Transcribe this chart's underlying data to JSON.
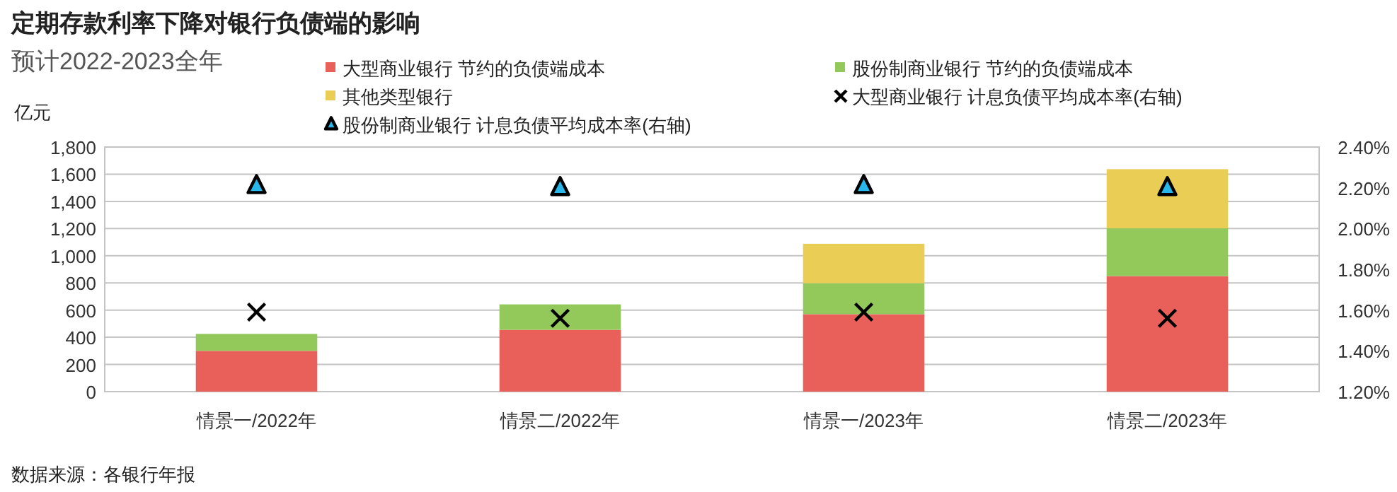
{
  "chart_data": {
    "type": "bar",
    "title": "定期存款利率下降对银行负债端的影响",
    "subtitle": "预计2022-2023全年",
    "ylabel": "亿元",
    "categories": [
      "情景一/2022年",
      "情景二/2022年",
      "情景一/2023年",
      "情景二/2023年"
    ],
    "stacked": true,
    "grid": "y",
    "legend": "top",
    "ylim": [
      0,
      1800
    ],
    "yticks": [
      0,
      {
        "value": 200,
        "label": "200"
      },
      {
        "value": 400,
        "label": "400"
      },
      {
        "value": 600,
        "label": "600"
      },
      {
        "value": 800,
        "label": "800"
      },
      {
        "value": 1000,
        "label": "1,000"
      },
      {
        "value": 1200,
        "label": "1,200"
      },
      {
        "value": 1400,
        "label": "1,400"
      },
      {
        "value": 1600,
        "label": "1,600"
      },
      {
        "value": 1800,
        "label": "1,800"
      }
    ],
    "y2lim": [
      1.2,
      2.4
    ],
    "y2ticks": [
      {
        "value": 1.2,
        "label": "1.20%"
      },
      {
        "value": 1.4,
        "label": "1.40%"
      },
      {
        "value": 1.6,
        "label": "1.60%"
      },
      {
        "value": 1.8,
        "label": "1.80%"
      },
      {
        "value": 2.0,
        "label": "2.00%"
      },
      {
        "value": 2.2,
        "label": "2.20%"
      },
      {
        "value": 2.4,
        "label": "2.40%"
      }
    ],
    "series": [
      {
        "name": "大型商业银行 节约的负债端成本",
        "color": "#e9605a",
        "values": [
          300,
          455,
          570,
          850
        ]
      },
      {
        "name": "股份制商业银行 节约的负债端成本",
        "color": "#92c95a",
        "values": [
          125,
          187,
          228,
          352
        ]
      },
      {
        "name": "其他类型银行",
        "color": "#eacd55",
        "values": [
          null,
          null,
          290,
          435
        ]
      },
      {
        "name": "大型商业银行 计息负债平均成本率(右轴)",
        "type": "scatter",
        "marker": "cross",
        "axis": "y2",
        "color": "#000000",
        "values": [
          1.59,
          1.56,
          1.59,
          1.56
        ]
      },
      {
        "name": "股份制商业银行 计息负债平均成本率(右轴)",
        "type": "scatter",
        "marker": "triangle",
        "axis": "y2",
        "color": "#29b6e8",
        "values": [
          2.21,
          2.2,
          2.21,
          2.2
        ]
      }
    ],
    "annotations": [
      "数据来源：各银行年报"
    ]
  }
}
